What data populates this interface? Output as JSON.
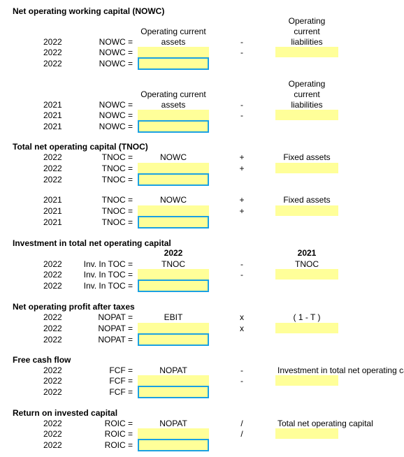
{
  "nowc_section": {
    "title": "Net operating working capital (NOWC)",
    "blocks": [
      {
        "year": "2022",
        "header_left_1": "Operating current",
        "header_left_2": "assets",
        "header_right_1": "Operating",
        "header_right_2": "current",
        "header_right_3": "liabilities",
        "label": "NOWC =",
        "operator": "-"
      },
      {
        "year": "2021",
        "header_left_1": "Operating current",
        "header_left_2": "assets",
        "header_right_1": "Operating",
        "header_right_2": "current",
        "header_right_3": "liabilities",
        "label": "NOWC =",
        "operator": "-"
      }
    ]
  },
  "tnoc_section": {
    "title": "Total net operating capital (TNOC)",
    "blocks": [
      {
        "year": "2022",
        "label": "TNOC =",
        "col_left": "NOWC",
        "col_right": "Fixed assets",
        "operator": "+"
      },
      {
        "year": "2021",
        "label": "TNOC =",
        "col_left": "NOWC",
        "col_right": "Fixed assets",
        "operator": "+"
      }
    ]
  },
  "investment_section": {
    "title": "Investment in total net operating capital",
    "year": "2022",
    "header_left_year": "2022",
    "header_left": "TNOC",
    "header_right_year": "2021",
    "header_right": "TNOC",
    "label": "Inv. In TOC =",
    "operator": "-"
  },
  "nopat_section": {
    "title": "Net operating profit after taxes",
    "year": "2022",
    "label": "NOPAT =",
    "col_left": "EBIT",
    "col_right": "( 1 - T )",
    "operator": "x"
  },
  "fcf_section": {
    "title": "Free cash flow",
    "year": "2022",
    "label": "FCF =",
    "col_left": "NOPAT",
    "col_right": "Investment in total net operating capital",
    "operator": "-"
  },
  "roic_section": {
    "title": "Return on invested capital",
    "year": "2022",
    "label": "ROIC =",
    "col_left": "NOPAT",
    "col_right": "Total net operating capital",
    "operator": "/"
  }
}
